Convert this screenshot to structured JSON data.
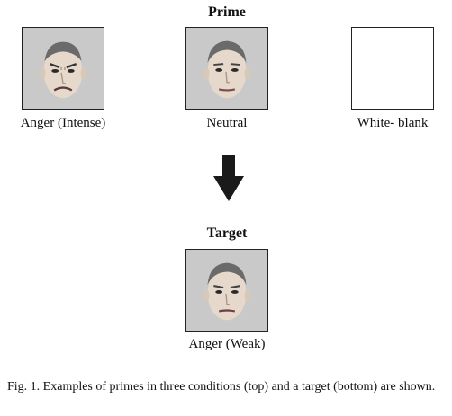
{
  "prime_section": {
    "title": "Prime",
    "items": [
      {
        "label": "Anger (Intense)",
        "image": "angry-face-intense",
        "background": "#c9c9c9"
      },
      {
        "label": "Neutral",
        "image": "neutral-face",
        "background": "#c9c9c9"
      },
      {
        "label": "White- blank",
        "image": "blank-white",
        "background": "#ffffff"
      }
    ]
  },
  "arrow": {
    "icon": "down-arrow-icon",
    "color": "#1a1a1a"
  },
  "target_section": {
    "title": "Target",
    "items": [
      {
        "label": "Anger (Weak)",
        "image": "angry-face-weak",
        "background": "#c9c9c9"
      }
    ]
  },
  "figure_caption": "Fig. 1. Examples of primes in three conditions (top) and a target (bottom) are shown."
}
